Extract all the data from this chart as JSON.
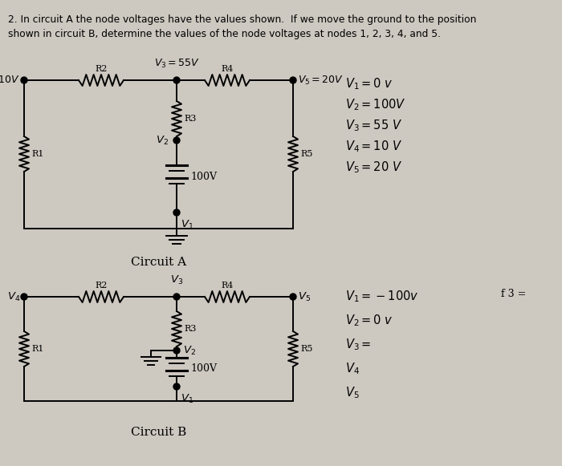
{
  "bg_color": "#cdc8c0",
  "title_line1": "2. In circuit A the node voltages have the values shown.  If we move the ground to the position",
  "title_line2": "shown in circuit B, determine the values of the node voltages at nodes 1, 2, 3, 4, and 5.",
  "circuit_A_label": "Circuit A",
  "circuit_B_label": "Circuit B",
  "note_B": "f 3 ="
}
